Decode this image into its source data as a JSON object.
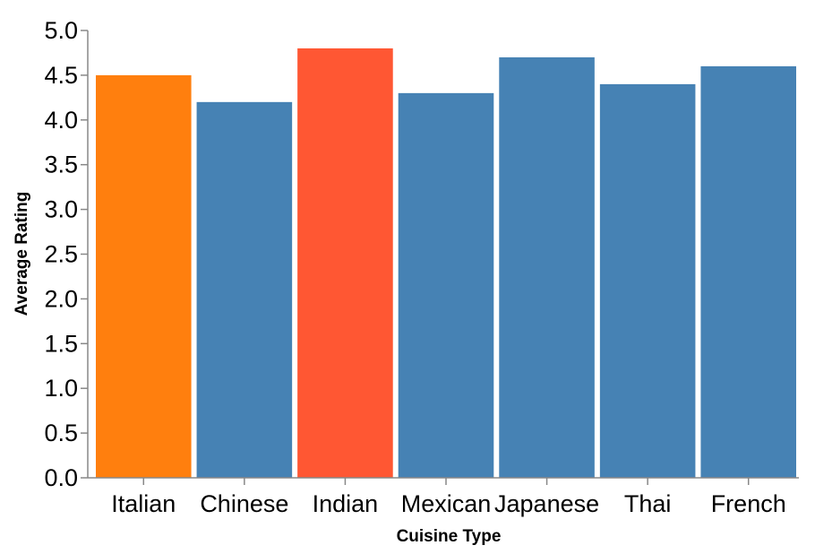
{
  "chart_data": {
    "type": "bar",
    "title": "",
    "xlabel": "Cuisine Type",
    "ylabel": "Average Rating",
    "categories": [
      "Italian",
      "Chinese",
      "Indian",
      "Mexican",
      "Japanese",
      "Thai",
      "French"
    ],
    "values": [
      4.5,
      4.2,
      4.8,
      4.3,
      4.7,
      4.4,
      4.6
    ],
    "bar_colors": [
      "#ff7f0e",
      "#4682b4",
      "#ff5733",
      "#4682b4",
      "#4682b4",
      "#4682b4",
      "#4682b4"
    ],
    "ylim": [
      0,
      5
    ],
    "yticks": [
      "0.0",
      "0.5",
      "1.0",
      "1.5",
      "2.0",
      "2.5",
      "3.0",
      "3.5",
      "4.0",
      "4.5",
      "5.0"
    ],
    "grid": false,
    "legend": "none"
  }
}
